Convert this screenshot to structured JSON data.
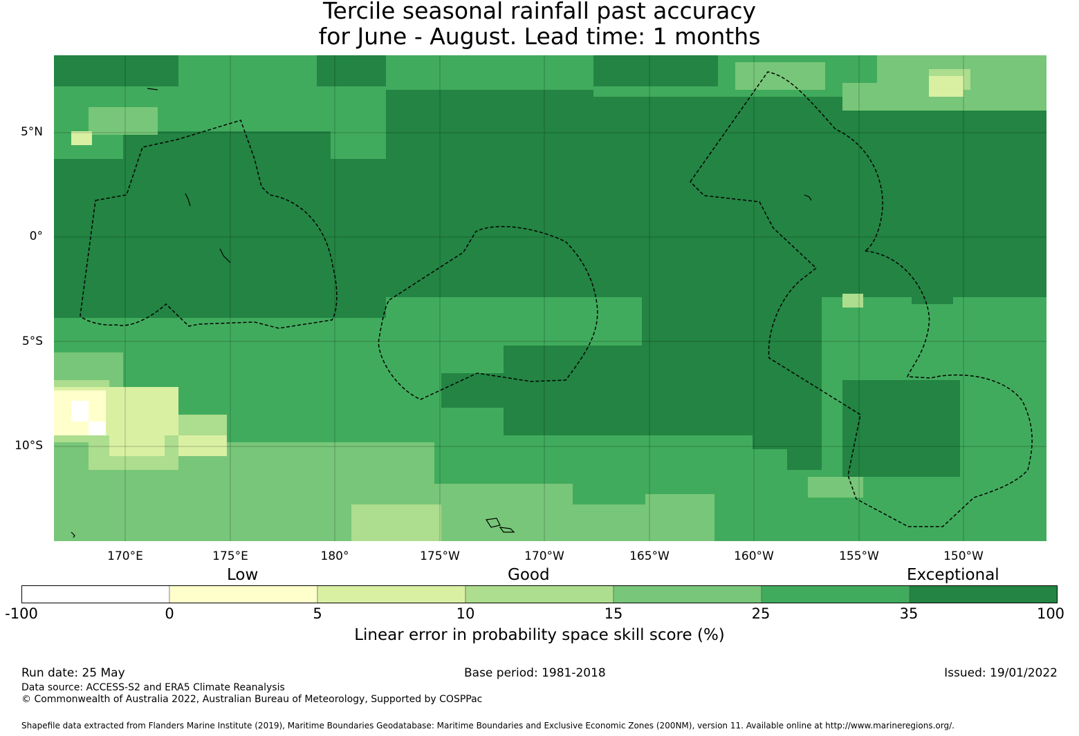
{
  "title": {
    "line1": "Tercile seasonal rainfall past accuracy",
    "line2": "for June - August. Lead time: 1 months"
  },
  "map": {
    "lat_labels": [
      "5°N",
      "0°",
      "5°S",
      "10°S"
    ],
    "lon_labels": [
      "170°E",
      "175°E",
      "180°",
      "175°W",
      "170°W",
      "165°W",
      "160°W",
      "155°W",
      "150°W"
    ]
  },
  "legend": {
    "categories": [
      "Low",
      "Good",
      "Exceptional"
    ],
    "ticks": [
      "-100",
      "0",
      "5",
      "10",
      "15",
      "25",
      "35",
      "100"
    ],
    "colors": [
      "#ffffff",
      "#ffffcc",
      "#d9f0a3",
      "#addd8e",
      "#78c679",
      "#41ab5d",
      "#238443"
    ],
    "axis_label": "Linear error in probability space skill score (%)"
  },
  "footer": {
    "run_date": "Run date: 25 May",
    "base_period": "Base period: 1981-2018",
    "issued": "Issued: 19/01/2022",
    "data_source": "Data source: ACCESS-S2 and ERA5 Climate Reanalysis",
    "copyright": "© Commonwealth of Australia 2022, Australian Bureau of Meteorology, Supported by COSPPac",
    "shapefile": "Shapefile data extracted from Flanders Marine Institute (2019), Maritime Boundaries Geodatabase: Maritime Boundaries and Exclusive Economic Zones (200NM), version 11. Available online at http://www.marineregions.org/."
  }
}
